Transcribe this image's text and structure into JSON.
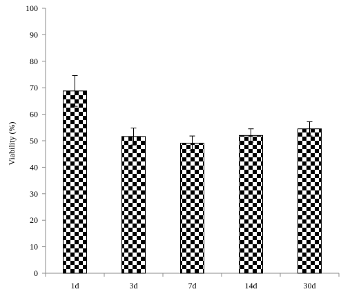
{
  "chart_data": {
    "type": "bar",
    "title": "",
    "xlabel": "",
    "ylabel": "Viability (%)",
    "categories": [
      "1d",
      "3d",
      "7d",
      "14d",
      "30d"
    ],
    "values": [
      68.8,
      51.6,
      49.1,
      52.0,
      54.5
    ],
    "error": [
      5.8,
      3.2,
      2.7,
      2.5,
      2.7
    ],
    "ylim": [
      0,
      100
    ],
    "yticks": [
      "0",
      "10",
      "20",
      "30",
      "40",
      "50",
      "60",
      "70",
      "80",
      "90",
      "100"
    ],
    "grid": false,
    "legend": "none",
    "bar_pattern": "checkerboard",
    "colors": {
      "bar_fill_a": "#000000",
      "bar_fill_b": "#ffffff",
      "axis": "#8c8c8c"
    }
  }
}
